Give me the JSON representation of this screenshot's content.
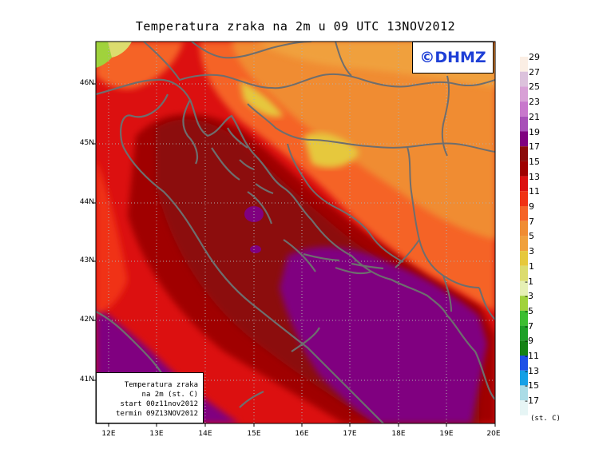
{
  "title": "Temperatura zraka na 2m u 09 UTC 13NOV2012",
  "badge": "©DHMZ",
  "info": {
    "line1": "Temperatura zraka",
    "line2": "na 2m (st. C)",
    "line3": "start 00z11nov2012",
    "line4": "termin 09Z13NOV2012"
  },
  "axes": {
    "lat_labels": [
      "46N",
      "45N",
      "44N",
      "43N",
      "42N",
      "41N"
    ],
    "lon_labels": [
      "12E",
      "13E",
      "14E",
      "15E",
      "16E",
      "17E",
      "18E",
      "19E",
      "20E"
    ]
  },
  "legend": {
    "unit": "(st. C)",
    "labels": [
      "29",
      "27",
      "25",
      "23",
      "21",
      "19",
      "17",
      "15",
      "13",
      "11",
      "9",
      "7",
      "5",
      "3",
      "1",
      "-1",
      "-3",
      "-5",
      "-7",
      "-9",
      "-11",
      "-13",
      "-15",
      "-17"
    ],
    "colors": [
      "#fbeee4",
      "#dcc2dc",
      "#d8a0d6",
      "#c878cc",
      "#a850b8",
      "#800080",
      "#8c0a0a",
      "#a00000",
      "#dc1010",
      "#f03214",
      "#f56428",
      "#f08c32",
      "#f0a03c",
      "#e6c83c",
      "#dcdc6e",
      "#e6f0b4",
      "#a0d23c",
      "#3cbe32",
      "#1ea028",
      "#148214",
      "#1e50e6",
      "#14a0e6",
      "#aadce6",
      "#e6f5f5"
    ]
  },
  "colors": {
    "sea_deep": "#8a0d8a",
    "coast_line": "#6e6e6e",
    "border_line": "#6e6e6e",
    "grid": "#b0b0b0"
  }
}
